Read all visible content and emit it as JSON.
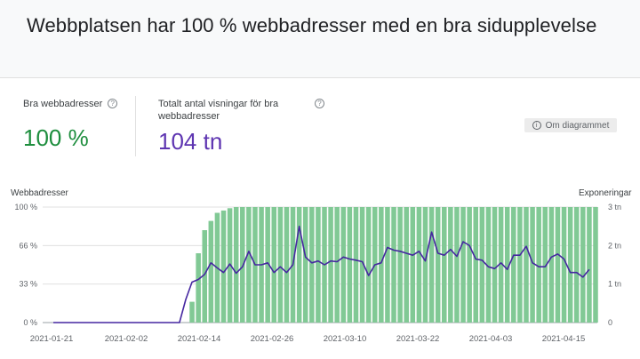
{
  "header": {
    "title": "Webbplatsen har 100 % webbadresser med en bra sidupplevelse"
  },
  "metrics": [
    {
      "label": "Bra webbadresser",
      "value": "100 %",
      "color": "#1e8e3e"
    },
    {
      "label": "Totalt antal visningar för bra webbadresser",
      "value": "104 tn",
      "color": "#5e35b1"
    }
  ],
  "about_button": {
    "label": "Om diagrammet"
  },
  "chart_data": {
    "type": "bar",
    "left_axis_title": "Webbadresser",
    "right_axis_title": "Exponeringar",
    "left_ticks": [
      "100 %",
      "66 %",
      "33 %",
      "0 %"
    ],
    "right_ticks": [
      "3 tn",
      "2 tn",
      "1 tn",
      "0"
    ],
    "x_tick_labels": [
      "2021-01-21",
      "2021-02-02",
      "2021-02-14",
      "2021-02-26",
      "2021-03-10",
      "2021-03-22",
      "2021-04-03",
      "2021-04-15"
    ],
    "bar_color": "#81c995",
    "line_color": "#4527a0",
    "bar_values_pct": [
      0,
      0,
      0,
      0,
      0,
      0,
      0,
      0,
      0,
      0,
      0,
      0,
      0,
      0,
      0,
      0,
      0,
      0,
      0,
      0,
      0,
      0,
      18,
      60,
      80,
      88,
      95,
      97,
      99,
      100,
      100,
      100,
      100,
      100,
      100,
      100,
      100,
      100,
      100,
      100,
      100,
      100,
      100,
      100,
      100,
      100,
      100,
      100,
      100,
      100,
      100,
      100,
      100,
      100,
      100,
      100,
      100,
      100,
      100,
      100,
      100,
      100,
      100,
      100,
      100,
      100,
      100,
      100,
      100,
      100,
      100,
      100,
      100,
      100,
      100,
      100,
      100,
      100,
      100,
      100,
      100,
      100,
      100,
      100,
      100,
      100,
      100
    ],
    "line_values_tn": [
      0,
      0,
      0,
      0,
      0,
      0,
      0,
      0,
      0,
      0,
      0,
      0,
      0,
      0,
      0,
      0,
      0,
      0,
      0,
      0,
      0,
      0.6,
      1.05,
      1.12,
      1.25,
      1.55,
      1.42,
      1.3,
      1.52,
      1.28,
      1.45,
      1.85,
      1.5,
      1.5,
      1.55,
      1.3,
      1.45,
      1.3,
      1.5,
      2.5,
      1.7,
      1.55,
      1.6,
      1.5,
      1.6,
      1.58,
      1.7,
      1.65,
      1.62,
      1.58,
      1.22,
      1.5,
      1.55,
      1.95,
      1.88,
      1.85,
      1.8,
      1.75,
      1.85,
      1.6,
      2.35,
      1.8,
      1.75,
      1.9,
      1.72,
      2.1,
      2.0,
      1.65,
      1.62,
      1.45,
      1.4,
      1.55,
      1.38,
      1.75,
      1.75,
      1.98,
      1.55,
      1.45,
      1.45,
      1.7,
      1.78,
      1.65,
      1.3,
      1.3,
      1.18,
      1.38
    ]
  }
}
